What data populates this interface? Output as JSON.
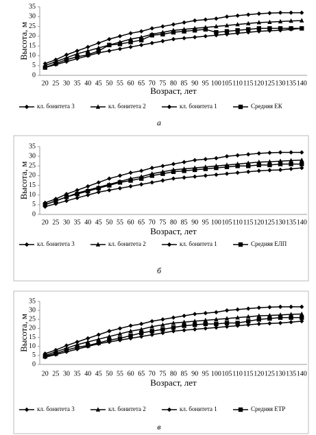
{
  "chart_data": [
    {
      "type": "line",
      "caption": "а",
      "xlabel": "Возраст, лет",
      "ylabel": "Высота, м",
      "categories": [
        "20",
        "25",
        "30",
        "35",
        "40",
        "45",
        "50",
        "55",
        "60",
        "65",
        "70",
        "75",
        "80",
        "85",
        "90",
        "95",
        "100",
        "105",
        "110",
        "115",
        "120",
        "125",
        "130",
        "135",
        "140"
      ],
      "ylim": [
        0,
        35
      ],
      "yticks": [
        0,
        5,
        10,
        15,
        20,
        25,
        30,
        35
      ],
      "grid": false,
      "series": [
        {
          "name": "кл. бонитета 3",
          "color": "#000000",
          "marker": "diamond",
          "values": [
            4,
            5.5,
            7,
            8.5,
            10,
            11.5,
            12.5,
            13.5,
            14.5,
            15.5,
            16.5,
            17.5,
            18.5,
            19,
            19.5,
            20,
            20.5,
            21,
            21.5,
            22,
            22.5,
            22.8,
            23,
            23.5,
            24
          ]
        },
        {
          "name": "кл. бонитета 2",
          "color": "#000000",
          "marker": "triangle",
          "values": [
            5,
            7,
            9,
            11,
            12.5,
            14,
            15.5,
            17,
            18.5,
            19.5,
            21,
            22,
            23,
            23.5,
            24,
            24.5,
            25,
            25.5,
            26,
            26.5,
            27,
            27.2,
            27.5,
            27.8,
            28
          ]
        },
        {
          "name": "кл. бонитета 1",
          "color": "#000000",
          "marker": "diamond",
          "values": [
            6,
            8,
            10.5,
            12.5,
            14.5,
            16.5,
            18.5,
            20,
            21.5,
            22.5,
            24,
            25,
            26,
            27,
            28,
            28.5,
            29,
            30,
            30.5,
            31,
            31.5,
            31.8,
            32,
            32,
            32
          ]
        },
        {
          "name": "Средняя ЕК",
          "color": "#000000",
          "marker": "square",
          "values": [
            4,
            6,
            8,
            9.5,
            10.5,
            12.5,
            15.5,
            16,
            17,
            18,
            20.5,
            21,
            22,
            22.5,
            23,
            23.5,
            22,
            22.5,
            23,
            23.5,
            24,
            24,
            24,
            24,
            24
          ]
        }
      ]
    },
    {
      "type": "line",
      "caption": "б",
      "xlabel": "Возраст, лет",
      "ylabel": "Высота, м",
      "categories": [
        "20",
        "25",
        "30",
        "35",
        "40",
        "45",
        "50",
        "55",
        "60",
        "65",
        "70",
        "75",
        "80",
        "85",
        "90",
        "95",
        "100",
        "105",
        "110",
        "115",
        "120",
        "125",
        "130",
        "135",
        "140"
      ],
      "ylim": [
        0,
        35
      ],
      "yticks": [
        0,
        5,
        10,
        15,
        20,
        25,
        30,
        35
      ],
      "grid": false,
      "series": [
        {
          "name": "кл. бонитета 3",
          "color": "#000000",
          "marker": "diamond",
          "values": [
            4,
            5.5,
            7,
            8.5,
            10,
            11.5,
            12.5,
            13.5,
            14.5,
            15.5,
            16.5,
            17.5,
            18.5,
            19,
            19.5,
            20,
            20.5,
            21,
            21.5,
            22,
            22.5,
            22.8,
            23,
            23.5,
            24
          ]
        },
        {
          "name": "кл. бонитета 2",
          "color": "#000000",
          "marker": "triangle",
          "values": [
            5,
            7,
            9,
            11,
            12.5,
            14,
            15.5,
            17,
            18.5,
            19.5,
            21,
            22,
            23,
            23.5,
            24,
            24.5,
            25,
            25.5,
            26,
            26.5,
            27,
            27.2,
            27.5,
            27.8,
            28
          ]
        },
        {
          "name": "кл. бонитета 1",
          "color": "#000000",
          "marker": "diamond",
          "values": [
            6,
            8,
            10.5,
            12.5,
            14.5,
            16.5,
            18.5,
            20,
            21.5,
            22.5,
            24,
            25,
            26,
            27,
            28,
            28.5,
            29,
            30,
            30.5,
            31,
            31.5,
            31.8,
            32,
            32,
            32
          ]
        },
        {
          "name": "Средняя ЕЛП",
          "color": "#000000",
          "marker": "square",
          "values": [
            5,
            7,
            9,
            10.5,
            12,
            13.5,
            15,
            16.5,
            17.5,
            18.5,
            20,
            21,
            22,
            22.5,
            23,
            23.5,
            24,
            24.5,
            25,
            25,
            25.5,
            25.5,
            26,
            26,
            26
          ]
        }
      ]
    },
    {
      "type": "line",
      "caption": "в",
      "xlabel": "Возраст, лет",
      "ylabel": "Высота, м",
      "categories": [
        "20",
        "25",
        "30",
        "35",
        "40",
        "45",
        "50",
        "55",
        "60",
        "65",
        "70",
        "75",
        "80",
        "85",
        "90",
        "95",
        "100",
        "105",
        "110",
        "115",
        "120",
        "125",
        "130",
        "135",
        "140"
      ],
      "ylim": [
        0,
        35
      ],
      "yticks": [
        0,
        5,
        10,
        15,
        20,
        25,
        30,
        35
      ],
      "grid": false,
      "series": [
        {
          "name": "кл. бонитета 3",
          "color": "#000000",
          "marker": "diamond",
          "values": [
            4,
            5.5,
            7,
            8.5,
            10,
            11.5,
            12.5,
            13.5,
            14.5,
            15.5,
            16.5,
            17.5,
            18.5,
            19,
            19.5,
            20,
            20.5,
            21,
            21.5,
            22,
            22.5,
            22.8,
            23,
            23.5,
            24
          ]
        },
        {
          "name": "кл. бонитета 2",
          "color": "#000000",
          "marker": "triangle",
          "values": [
            5,
            7,
            9,
            11,
            12.5,
            14,
            15.5,
            17,
            18.5,
            19.5,
            21,
            22,
            23,
            23.5,
            24,
            24.5,
            25,
            25.5,
            26,
            26.5,
            27,
            27.2,
            27.5,
            27.8,
            28
          ]
        },
        {
          "name": "кл. бонитета 1",
          "color": "#000000",
          "marker": "diamond",
          "values": [
            6,
            8,
            10.5,
            12.5,
            14.5,
            16.5,
            18.5,
            20,
            21.5,
            22.5,
            24,
            25,
            26,
            27,
            28,
            28.5,
            29,
            30,
            30.5,
            31,
            31.5,
            31.8,
            32,
            32,
            32
          ]
        },
        {
          "name": "Средняя ЕТР",
          "color": "#000000",
          "marker": "square",
          "values": [
            4.5,
            6,
            8,
            9.5,
            10.5,
            12,
            13.5,
            14.5,
            16,
            17.5,
            18.5,
            19.5,
            20.5,
            21.5,
            22,
            22.5,
            22.5,
            23,
            23,
            24,
            25,
            25.5,
            26,
            26,
            26
          ]
        }
      ]
    }
  ]
}
